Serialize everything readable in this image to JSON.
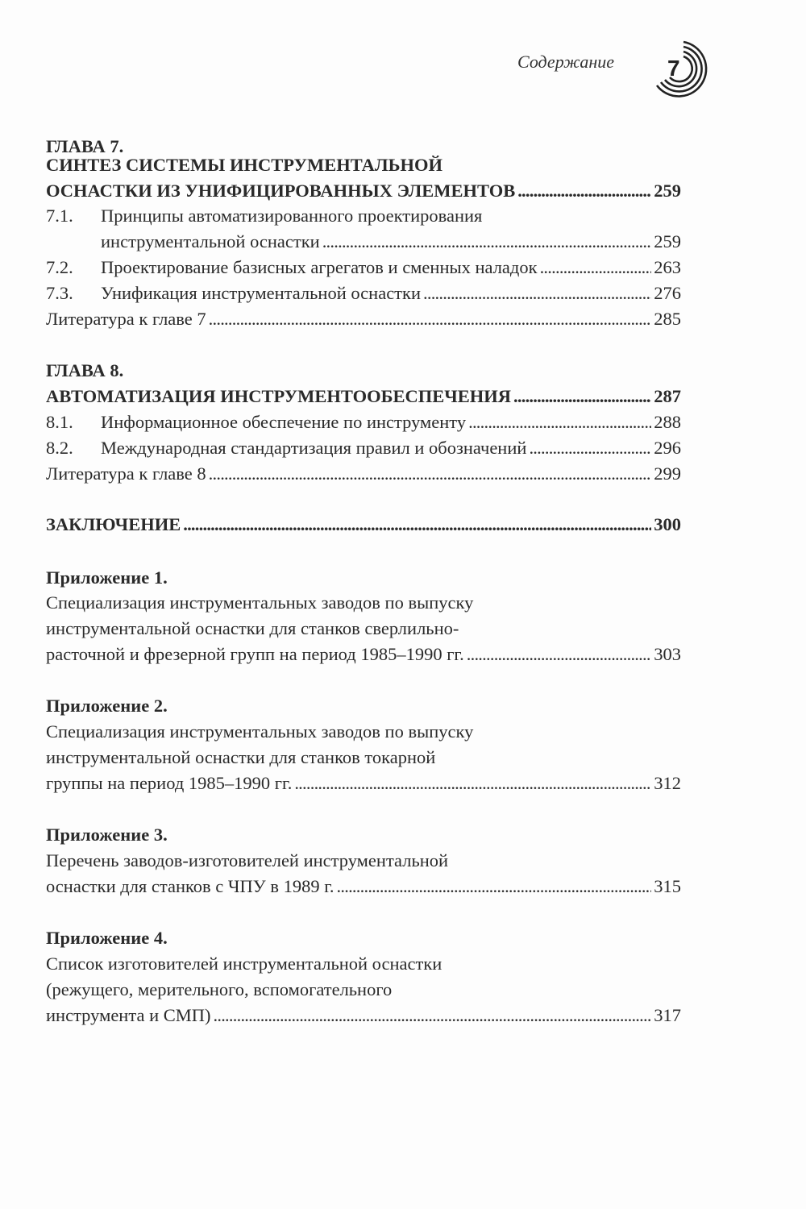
{
  "header": {
    "section": "Содержание",
    "page_number": "7"
  },
  "ch7": {
    "label": "ГЛАВА 7.",
    "title1": "СИНТЕЗ СИСТЕМЫ ИНСТРУМЕНТАЛЬНОЙ",
    "title2": "ОСНАСТКИ ИЗ УНИФИЦИРОВАННЫХ ЭЛЕМЕНТОВ",
    "page": "259",
    "s1": {
      "num": "7.1.",
      "t1": "Принципы автоматизированного проектирования",
      "t2": "инструментальной оснастки",
      "page": "259"
    },
    "s2": {
      "num": "7.2.",
      "t": "Проектирование базисных агрегатов и сменных наладок",
      "page": "263"
    },
    "s3": {
      "num": "7.3.",
      "t": "Унификация инструментальной оснастки",
      "page": "276"
    },
    "lit": {
      "t": "Литература к главе 7",
      "page": "285"
    }
  },
  "ch8": {
    "label": "ГЛАВА 8.",
    "title": "АВТОМАТИЗАЦИЯ ИНСТРУМЕНТООБЕСПЕЧЕНИЯ",
    "page": "287",
    "s1": {
      "num": "8.1.",
      "t": "Информационное обеспечение по инструменту",
      "page": "288"
    },
    "s2": {
      "num": "8.2.",
      "t": "Международная стандартизация правил и обозначений",
      "page": "296"
    },
    "lit": {
      "t": "Литература к главе 8",
      "page": "299"
    }
  },
  "concl": {
    "t": "ЗАКЛЮЧЕНИЕ",
    "page": "300"
  },
  "app1": {
    "label": "Приложение 1.",
    "l1": "Специализация инструментальных заводов по выпуску",
    "l2": "инструментальной оснастки для станков сверлильно-",
    "l3": "расточной и фрезерной групп на период 1985–1990 гг.",
    "page": "303"
  },
  "app2": {
    "label": "Приложение 2.",
    "l1": "Специализация инструментальных заводов по выпуску",
    "l2": "инструментальной оснастки для станков токарной",
    "l3": "группы на период 1985–1990 гг.",
    "page": "312"
  },
  "app3": {
    "label": "Приложение 3.",
    "l1": "Перечень заводов-изготовителей инструментальной",
    "l2": "оснастки для станков с ЧПУ в 1989 г.",
    "page": "315"
  },
  "app4": {
    "label": "Приложение 4.",
    "l1": "Список изготовителей инструментальной оснастки",
    "l2": "(режущего, мерительного, вспомогательного",
    "l3": "инструмента и СМП)",
    "page": "317"
  }
}
